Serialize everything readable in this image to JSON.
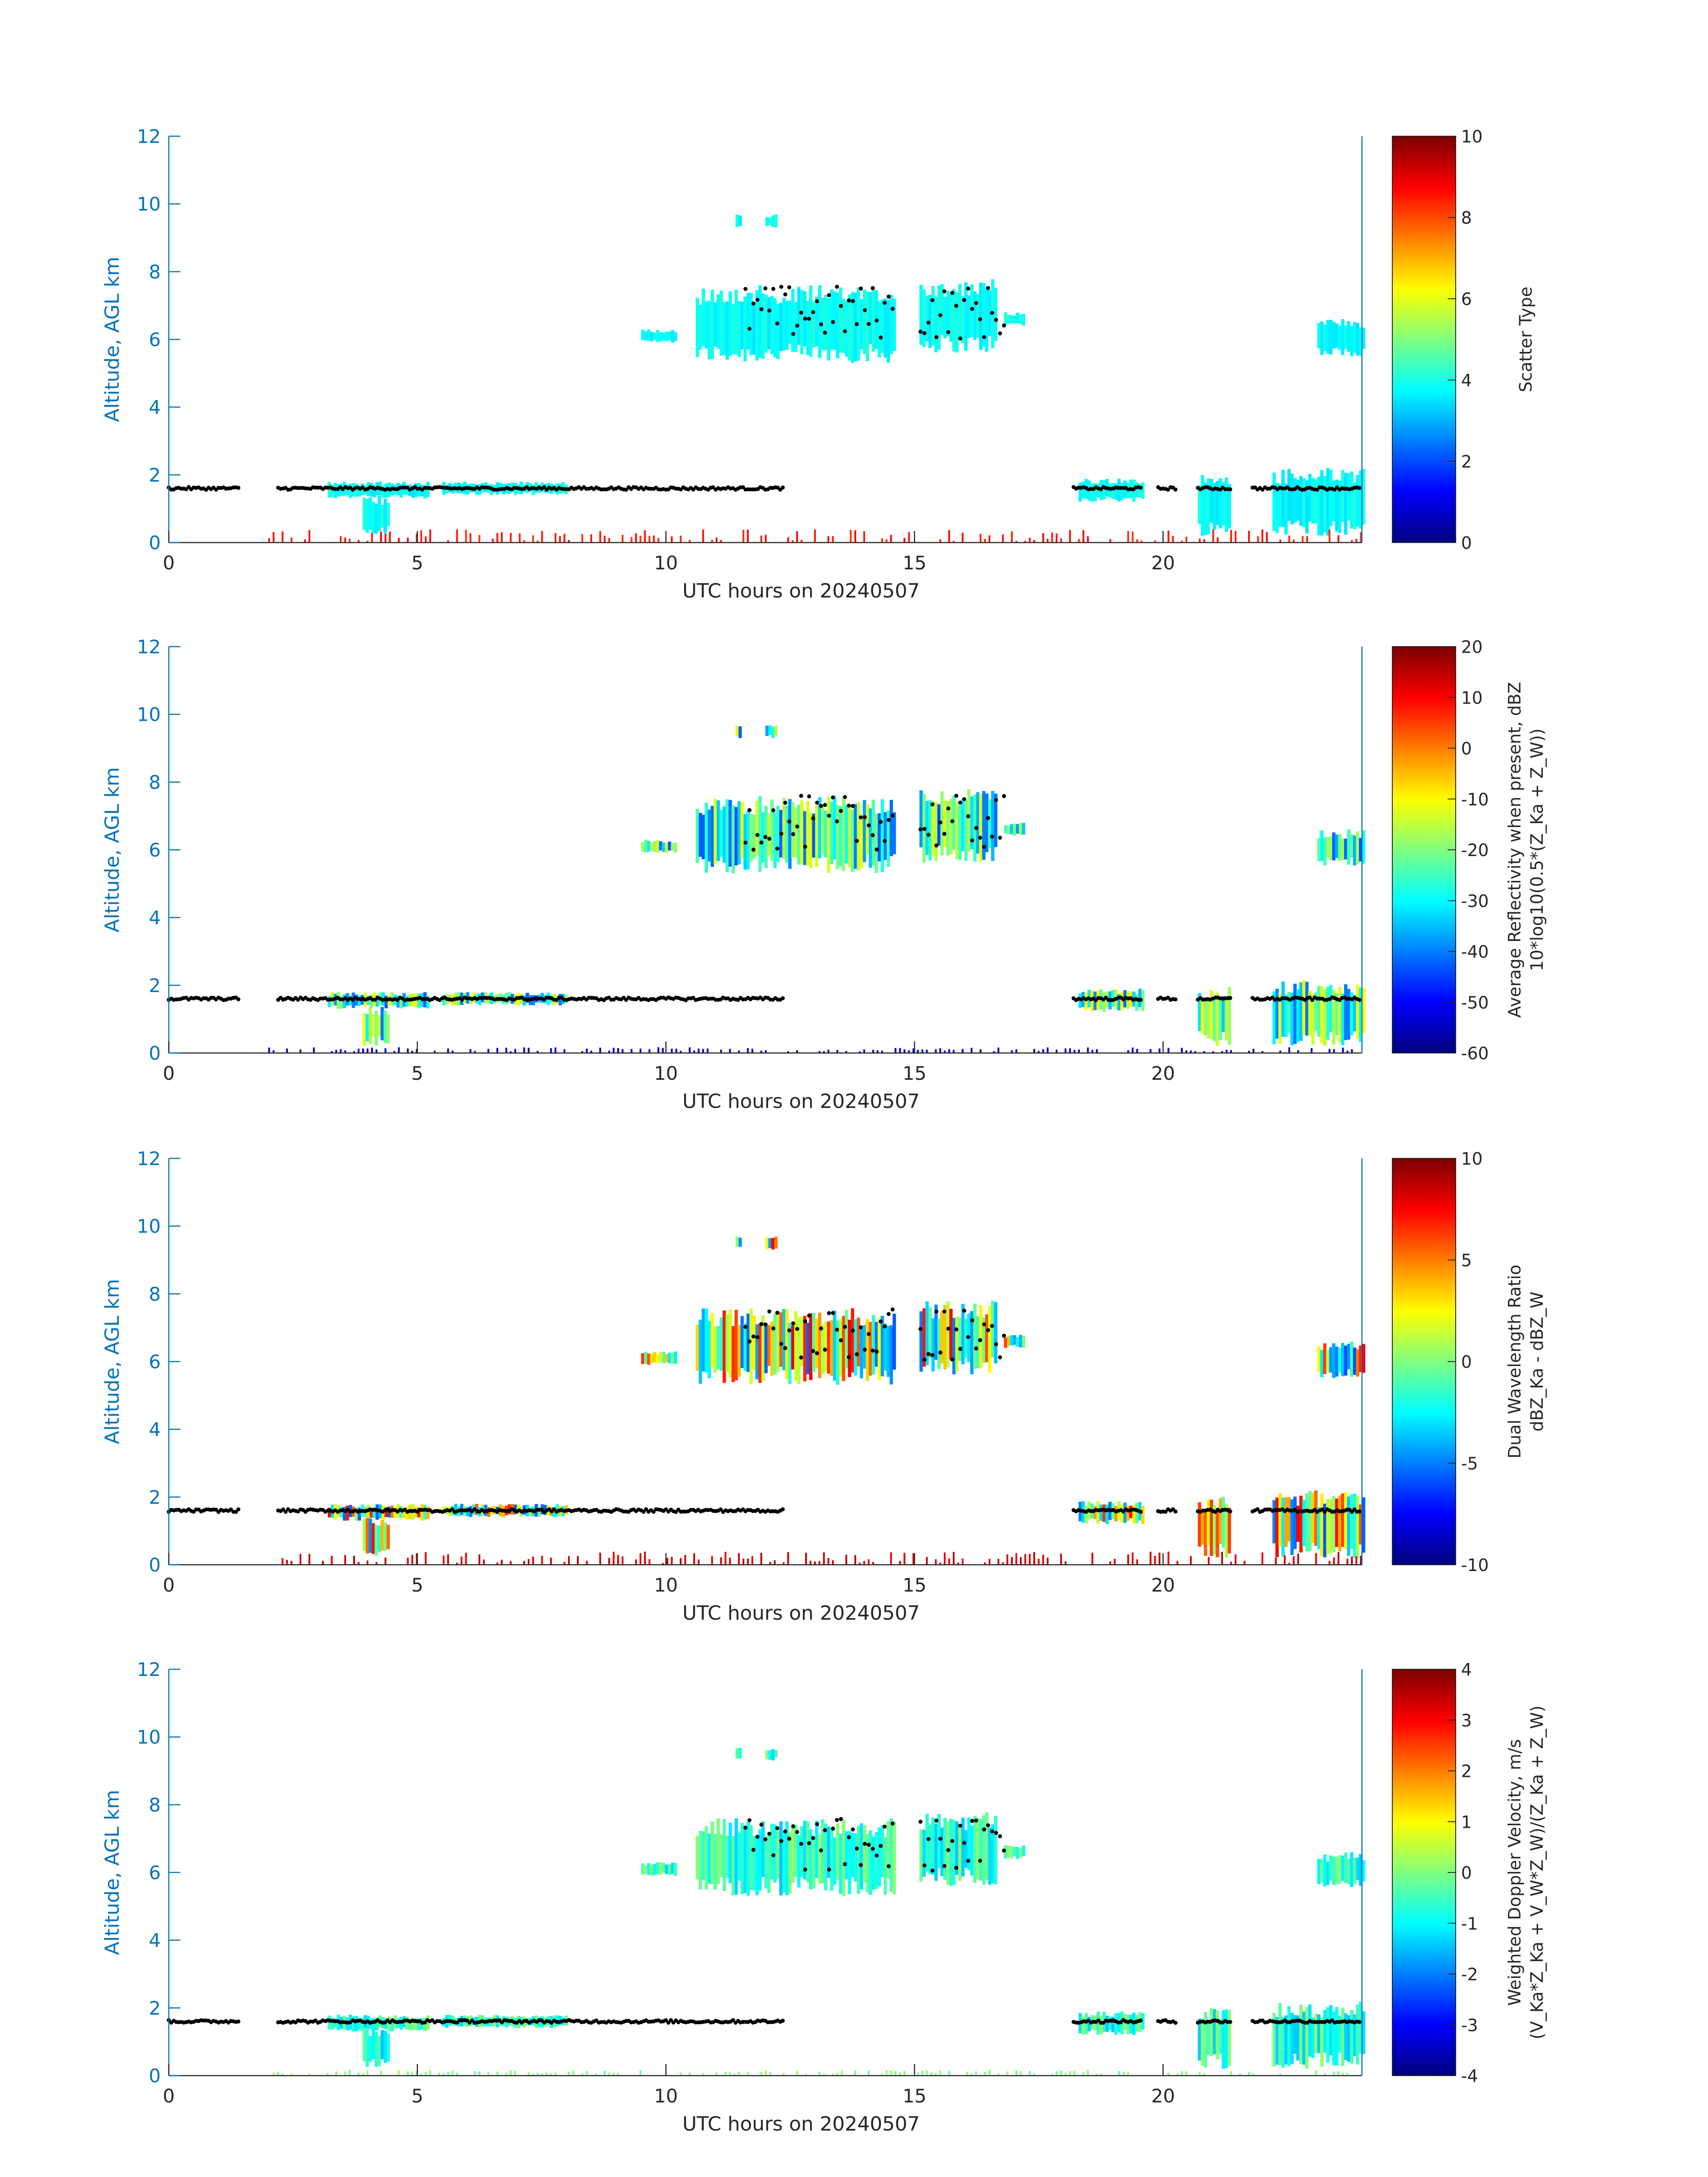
{
  "figure": {
    "colors": {
      "axis": "#0072BD",
      "text": "#262626",
      "cloud_base_markers": "#000000"
    }
  },
  "chart_data": [
    {
      "type": "heatmap",
      "xlabel": "UTC hours on 20240507",
      "ylabel": "Altitude, AGL km",
      "xlim": [
        0,
        24
      ],
      "ylim": [
        0,
        12
      ],
      "xticks": [
        "0",
        "5",
        "10",
        "15",
        "20"
      ],
      "yticks": [
        "0",
        "2",
        "4",
        "6",
        "8",
        "10",
        "12"
      ],
      "colorbar": {
        "label_lines": [
          "Scatter Type"
        ],
        "range": [
          0,
          10
        ],
        "ticks": [
          "0",
          "2",
          "4",
          "6",
          "8",
          "10"
        ],
        "colormap": "jet"
      },
      "cloud_base_km": 1.6
    },
    {
      "type": "heatmap",
      "xlabel": "UTC hours on 20240507",
      "ylabel": "Altitude, AGL km",
      "xlim": [
        0,
        24
      ],
      "ylim": [
        0,
        12
      ],
      "xticks": [
        "0",
        "5",
        "10",
        "15",
        "20"
      ],
      "yticks": [
        "0",
        "2",
        "4",
        "6",
        "8",
        "10",
        "12"
      ],
      "colorbar": {
        "label_lines": [
          "Average Reflectivity when present, dBZ",
          "10*log10(0.5*(Z_Ka + Z_W))"
        ],
        "range": [
          -60,
          20
        ],
        "ticks": [
          "-60",
          "-50",
          "-40",
          "-30",
          "-20",
          "-10",
          "0",
          "10",
          "20"
        ],
        "colormap": "jet"
      },
      "cloud_base_km": 1.6
    },
    {
      "type": "heatmap",
      "xlabel": "UTC hours on 20240507",
      "ylabel": "Altitude, AGL km",
      "xlim": [
        0,
        24
      ],
      "ylim": [
        0,
        12
      ],
      "xticks": [
        "0",
        "5",
        "10",
        "15",
        "20"
      ],
      "yticks": [
        "0",
        "2",
        "4",
        "6",
        "8",
        "10",
        "12"
      ],
      "colorbar": {
        "label_lines": [
          "Dual Wavelength Ratio",
          "dBZ_Ka - dBZ_W"
        ],
        "range": [
          -10,
          10
        ],
        "ticks": [
          "-10",
          "-5",
          "0",
          "5",
          "10"
        ],
        "colormap": "jet"
      },
      "cloud_base_km": 1.6
    },
    {
      "type": "heatmap",
      "xlabel": "UTC hours on 20240507",
      "ylabel": "Altitude, AGL km",
      "xlim": [
        0,
        24
      ],
      "ylim": [
        0,
        12
      ],
      "xticks": [
        "0",
        "5",
        "10",
        "15",
        "20"
      ],
      "yticks": [
        "0",
        "2",
        "4",
        "6",
        "8",
        "10",
        "12"
      ],
      "colorbar": {
        "label_lines": [
          "Weighted Doppler Velocity, m/s",
          "(V_Ka*Z_Ka + V_W*Z_W)/(Z_Ka + Z_W)"
        ],
        "range": [
          -4,
          4
        ],
        "ticks": [
          "-4",
          "-3",
          "-2",
          "-1",
          "0",
          "1",
          "2",
          "3",
          "4"
        ],
        "colormap": "jet"
      },
      "cloud_base_km": 1.6
    }
  ]
}
